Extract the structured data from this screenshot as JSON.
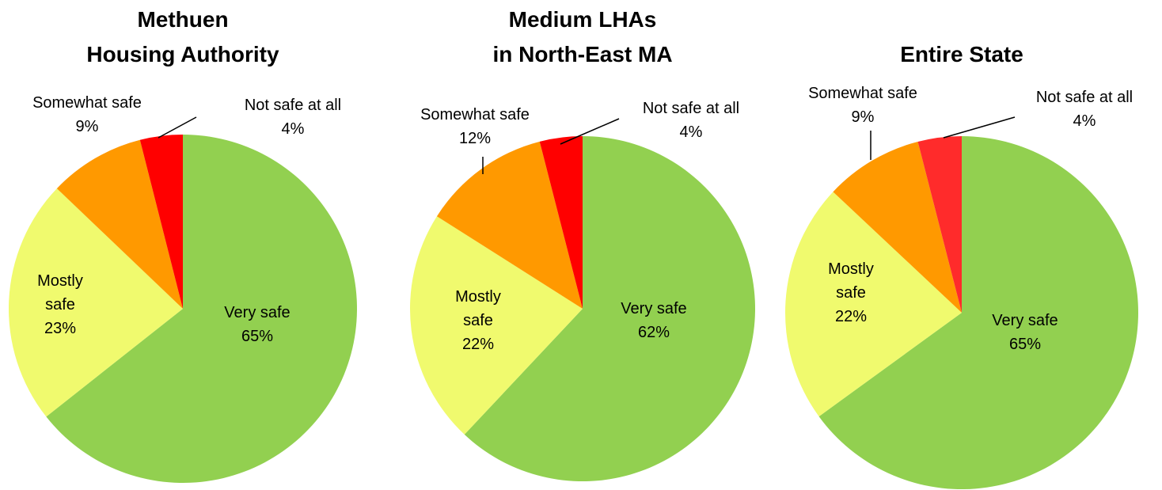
{
  "chart_data": [
    {
      "type": "pie",
      "title": "Methuen\nHousing Authority",
      "categories": [
        "Very safe",
        "Mostly safe",
        "Somewhat safe",
        "Not safe at all"
      ],
      "values": [
        65,
        23,
        9,
        4
      ],
      "value_labels": [
        "65%",
        "23%",
        "9%",
        "4%"
      ],
      "colors": [
        "#92d050",
        "#f0fa6e",
        "#ff9900",
        "#ff0000"
      ]
    },
    {
      "type": "pie",
      "title": "Medium LHAs\nin North-East MA",
      "categories": [
        "Very safe",
        "Mostly safe",
        "Somewhat safe",
        "Not safe at all"
      ],
      "values": [
        62,
        22,
        12,
        4
      ],
      "value_labels": [
        "62%",
        "22%",
        "12%",
        "4%"
      ],
      "colors": [
        "#92d050",
        "#f0fa6e",
        "#ff9900",
        "#ff0000"
      ]
    },
    {
      "type": "pie",
      "title": "Entire State",
      "categories": [
        "Very safe",
        "Mostly safe",
        "Somewhat safe",
        "Not safe at all"
      ],
      "values": [
        65,
        22,
        9,
        4
      ],
      "value_labels": [
        "65%",
        "22%",
        "9%",
        "4%"
      ],
      "colors": [
        "#92d050",
        "#f0fa6e",
        "#ff9900",
        "#ff2b2b"
      ]
    }
  ]
}
